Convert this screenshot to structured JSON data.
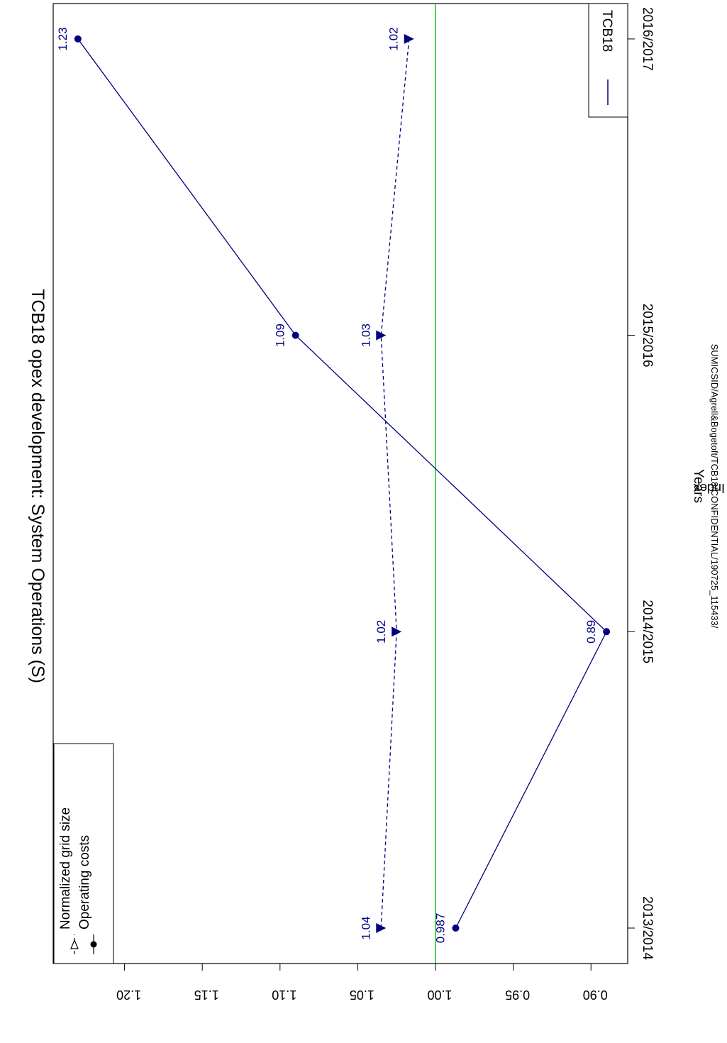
{
  "chart_data": {
    "type": "line",
    "title": "TCB18 opex development: System Operations (S)",
    "xlabel": "Years",
    "ylabel": "Index",
    "caption": "SUMICSID/Agrell&Bogetoft/TCB18/CONFIDENTIAL/190725_115433/",
    "categories": [
      "2013/2014",
      "2014/2015",
      "2015/2016",
      "2016/2017"
    ],
    "ylim": [
      0.88,
      1.24
    ],
    "y_ticks": [
      0.9,
      0.95,
      1.0,
      1.05,
      1.1,
      1.15,
      1.2
    ],
    "y_tick_labels": [
      "0.90",
      "0.95",
      "1.00",
      "1.05",
      "1.10",
      "1.15",
      "1.20"
    ],
    "reference_line": 1.0,
    "grid": false,
    "orientation": "rotated 90° clockwise",
    "series": [
      {
        "name": "Operating costs",
        "marker": "circle",
        "line": "solid",
        "color": "#000080",
        "values": [
          0.987,
          0.89,
          1.09,
          1.23
        ],
        "labels": [
          "0.987",
          "0.89",
          "1.09",
          "1.23"
        ]
      },
      {
        "name": "Normalized grid size",
        "marker": "triangle",
        "line": "dashed",
        "color": "#000080",
        "values": [
          1.035,
          1.025,
          1.035,
          1.017
        ],
        "labels": [
          "1.04",
          "1.02",
          "1.03",
          "1.02"
        ]
      }
    ],
    "legend_symbols": {
      "title": "",
      "items": [
        {
          "label": "Normalized grid size",
          "marker": "triangle-open",
          "line": "dashed"
        },
        {
          "label": "Operating costs",
          "marker": "circle",
          "line": "solid"
        }
      ],
      "placement": "bottom-left"
    },
    "legend_entity": {
      "items": [
        {
          "label": "TCB18",
          "color": "#000080"
        }
      ],
      "placement": "top-right"
    },
    "ref_line_color": "#22cc22",
    "axis_color": "#000000"
  }
}
